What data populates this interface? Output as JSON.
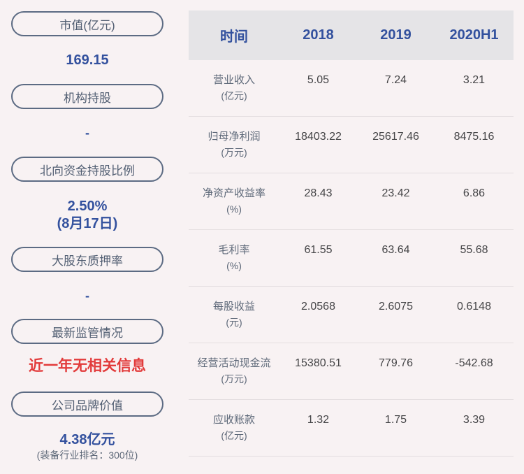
{
  "sidebar": {
    "items": [
      {
        "label": "市值(亿元)",
        "value": "169.15"
      },
      {
        "label": "机构持股",
        "value": "-"
      },
      {
        "label": "北向资金持股比例",
        "value": "2.50%",
        "value_line2": "(8月17日)"
      },
      {
        "label": "大股东质押率",
        "value": "-"
      },
      {
        "label": "最新监管情况",
        "value": "近一年无相关信息"
      },
      {
        "label": "公司品牌价值",
        "value": "4.38亿元",
        "subtext": "(装备行业排名：300位)"
      }
    ]
  },
  "table": {
    "columns": [
      "时间",
      "2018",
      "2019",
      "2020H1"
    ],
    "rows": [
      {
        "metric": "营业收入",
        "unit": "(亿元)",
        "values": [
          "5.05",
          "7.24",
          "3.21"
        ]
      },
      {
        "metric": "归母净利润",
        "unit": "(万元)",
        "values": [
          "18403.22",
          "25617.46",
          "8475.16"
        ]
      },
      {
        "metric": "净资产收益率",
        "unit": "(%)",
        "values": [
          "28.43",
          "23.42",
          "6.86"
        ]
      },
      {
        "metric": "毛利率",
        "unit": "(%)",
        "values": [
          "61.55",
          "63.64",
          "55.68"
        ]
      },
      {
        "metric": "每股收益",
        "unit": "(元)",
        "values": [
          "2.0568",
          "2.6075",
          "0.6148"
        ]
      },
      {
        "metric": "经营活动现金流",
        "unit": "(万元)",
        "values": [
          "15380.51",
          "779.76",
          "-542.68"
        ]
      },
      {
        "metric": "应收账款",
        "unit": "(亿元)",
        "values": [
          "1.32",
          "1.75",
          "3.39"
        ]
      }
    ]
  },
  "chart_data": {
    "type": "table",
    "columns": [
      "时间",
      "2018",
      "2019",
      "2020H1"
    ],
    "rows": [
      [
        "营业收入(亿元)",
        5.05,
        7.24,
        3.21
      ],
      [
        "归母净利润(万元)",
        18403.22,
        25617.46,
        8475.16
      ],
      [
        "净资产收益率(%)",
        28.43,
        23.42,
        6.86
      ],
      [
        "毛利率(%)",
        61.55,
        63.64,
        55.68
      ],
      [
        "每股收益(元)",
        2.0568,
        2.6075,
        0.6148
      ],
      [
        "经营活动现金流(万元)",
        15380.51,
        779.76,
        -542.68
      ],
      [
        "应收账款(亿元)",
        1.32,
        1.75,
        3.39
      ]
    ],
    "sidebar_stats": {
      "市值(亿元)": "169.15",
      "机构持股": "-",
      "北向资金持股比例": "2.50% (8月17日)",
      "大股东质押率": "-",
      "最新监管情况": "近一年无相关信息",
      "公司品牌价值": "4.38亿元 (装备行业排名：300位)"
    }
  },
  "colors": {
    "accent_blue": "#33519e",
    "alert_red": "#e23b3b",
    "header_bg": "#e5e4e7",
    "page_bg": "#f8f2f3",
    "pill_border": "#5c6b83"
  }
}
